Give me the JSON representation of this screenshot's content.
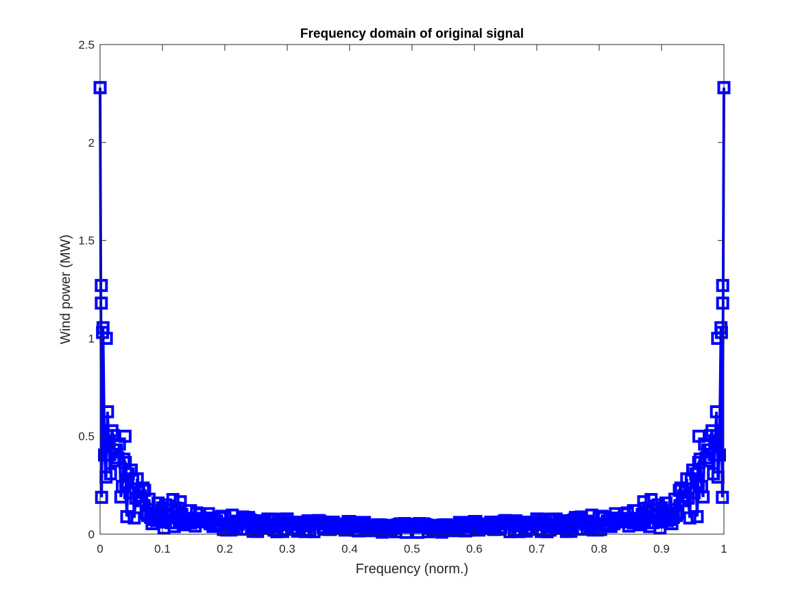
{
  "chart_data": {
    "type": "line",
    "title": "Frequency domain of original signal",
    "xlabel": "Frequency (norm.)",
    "ylabel": "Wind power (MW)",
    "xlim": [
      0,
      1
    ],
    "ylim": [
      0,
      2.5
    ],
    "xticks": [
      0,
      0.1,
      0.2,
      0.3,
      0.4,
      0.5,
      0.6,
      0.7,
      0.8,
      0.9,
      1
    ],
    "yticks": [
      0,
      0.5,
      1,
      1.5,
      2,
      2.5
    ],
    "xtick_labels": [
      "0",
      "0.1",
      "0.2",
      "0.3",
      "0.4",
      "0.5",
      "0.6",
      "0.7",
      "0.8",
      "0.9",
      "1"
    ],
    "ytick_labels": [
      "0",
      "0.5",
      "1",
      "1.5",
      "2",
      "2.5"
    ],
    "grid": false,
    "series": [
      {
        "color": "#0000ff",
        "marker": "square",
        "envelope_x": [
          0,
          0.002,
          0.004,
          0.006,
          0.008,
          0.01,
          0.015,
          0.02,
          0.03,
          0.04,
          0.05,
          0.06,
          0.08,
          0.1,
          0.12,
          0.15,
          0.2,
          0.25,
          0.3,
          0.35,
          0.4,
          0.45,
          0.5,
          0.55,
          0.6,
          0.65,
          0.7,
          0.75,
          0.8,
          0.85,
          0.88,
          0.9,
          0.92,
          0.94,
          0.95,
          0.96,
          0.97,
          0.98,
          0.985,
          0.99,
          0.992,
          0.994,
          0.996,
          0.998,
          1
        ],
        "envelope_y": [
          2.28,
          1.27,
          1.18,
          1.05,
          1.0,
          0.85,
          0.75,
          0.65,
          0.55,
          0.5,
          0.35,
          0.3,
          0.2,
          0.15,
          0.2,
          0.12,
          0.1,
          0.09,
          0.08,
          0.07,
          0.065,
          0.06,
          0.055,
          0.06,
          0.065,
          0.07,
          0.08,
          0.09,
          0.1,
          0.12,
          0.15,
          0.2,
          0.15,
          0.3,
          0.35,
          0.5,
          0.55,
          0.65,
          0.75,
          0.85,
          1.0,
          1.05,
          1.18,
          1.27,
          2.28
        ],
        "peaks": [
          {
            "x": 0,
            "y": 2.28
          },
          {
            "x": 0.002,
            "y": 1.27
          },
          {
            "x": 0.002,
            "y": 1.18
          },
          {
            "x": 0.004,
            "y": 1.03
          },
          {
            "x": 0.01,
            "y": 1.0
          },
          {
            "x": 0.04,
            "y": 0.5
          },
          {
            "x": 0.105,
            "y": 0.15
          },
          {
            "x": 0.145,
            "y": 0.12
          },
          {
            "x": 0.29,
            "y": 0.05
          },
          {
            "x": 0.52,
            "y": 0.04
          },
          {
            "x": 1,
            "y": 2.28
          },
          {
            "x": 0.998,
            "y": 1.27
          },
          {
            "x": 0.998,
            "y": 1.18
          },
          {
            "x": 0.996,
            "y": 1.03
          },
          {
            "x": 0.99,
            "y": 1.0
          },
          {
            "x": 0.96,
            "y": 0.5
          },
          {
            "x": 0.895,
            "y": 0.15
          },
          {
            "x": 0.855,
            "y": 0.12
          },
          {
            "x": 0.71,
            "y": 0.05
          },
          {
            "x": 0.48,
            "y": 0.04
          }
        ]
      }
    ]
  }
}
